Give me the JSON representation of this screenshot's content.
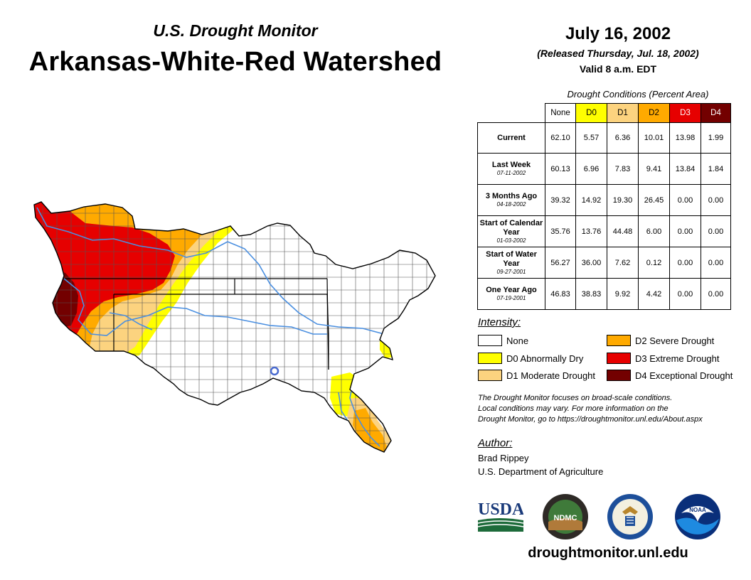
{
  "header": {
    "subtitle": "U.S. Drought Monitor",
    "title": "Arkansas-White-Red Watershed",
    "date": "July 16, 2002",
    "released": "(Released Thursday, Jul. 18, 2002)",
    "valid": "Valid 8 a.m. EDT"
  },
  "table": {
    "caption": "Drought Conditions (Percent Area)",
    "columns": [
      {
        "label": "None",
        "color": "#ffffff",
        "text_color": "#000000"
      },
      {
        "label": "D0",
        "color": "#ffff00",
        "text_color": "#000000"
      },
      {
        "label": "D1",
        "color": "#fcd37f",
        "text_color": "#000000"
      },
      {
        "label": "D2",
        "color": "#ffaa00",
        "text_color": "#000000"
      },
      {
        "label": "D3",
        "color": "#e60000",
        "text_color": "#ffffff"
      },
      {
        "label": "D4",
        "color": "#730000",
        "text_color": "#ffffff"
      }
    ],
    "rows": [
      {
        "label": "Current",
        "date": "",
        "values": [
          "62.10",
          "5.57",
          "6.36",
          "10.01",
          "13.98",
          "1.99"
        ]
      },
      {
        "label": "Last Week",
        "date": "07-11-2002",
        "values": [
          "60.13",
          "6.96",
          "7.83",
          "9.41",
          "13.84",
          "1.84"
        ]
      },
      {
        "label": "3 Months Ago",
        "date": "04-18-2002",
        "values": [
          "39.32",
          "14.92",
          "19.30",
          "26.45",
          "0.00",
          "0.00"
        ]
      },
      {
        "label": "Start of Calendar Year",
        "date": "01-03-2002",
        "values": [
          "35.76",
          "13.76",
          "44.48",
          "6.00",
          "0.00",
          "0.00"
        ]
      },
      {
        "label": "Start of Water Year",
        "date": "09-27-2001",
        "values": [
          "56.27",
          "36.00",
          "7.62",
          "0.12",
          "0.00",
          "0.00"
        ]
      },
      {
        "label": "One Year Ago",
        "date": "07-19-2001",
        "values": [
          "46.83",
          "38.83",
          "9.92",
          "4.42",
          "0.00",
          "0.00"
        ]
      }
    ]
  },
  "legend": {
    "title": "Intensity:",
    "items": [
      {
        "label": "None",
        "color": "#ffffff"
      },
      {
        "label": "D0 Abnormally Dry",
        "color": "#ffff00"
      },
      {
        "label": "D1 Moderate Drought",
        "color": "#fcd37f"
      },
      {
        "label": "D2 Severe Drought",
        "color": "#ffaa00"
      },
      {
        "label": "D3 Extreme Drought",
        "color": "#e60000"
      },
      {
        "label": "D4 Exceptional Drought",
        "color": "#730000"
      }
    ]
  },
  "note": {
    "line1": "The Drought Monitor focuses on broad-scale conditions.",
    "line2": "Local conditions may vary. For more information on the",
    "line3": "Drought Monitor, go to https://droughtmonitor.unl.edu/About.aspx"
  },
  "author": {
    "heading": "Author:",
    "name": "Brad Rippey",
    "org": "U.S. Department of Agriculture"
  },
  "logos": {
    "usda": "USDA",
    "ndmc": "NDMC",
    "noaa": "NOAA"
  },
  "footer": {
    "site": "droughtmonitor.unl.edu"
  }
}
